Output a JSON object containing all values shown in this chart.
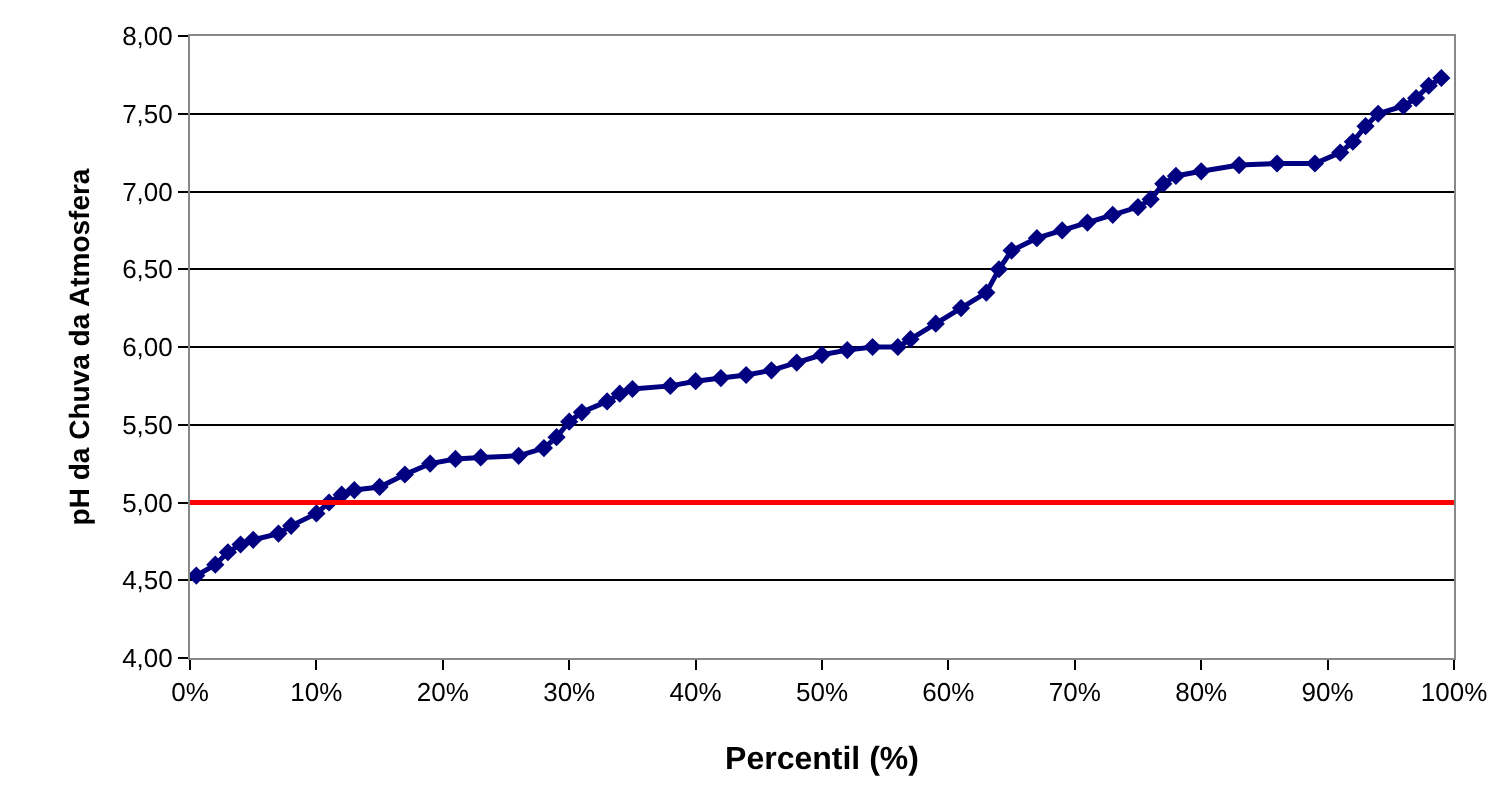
{
  "chart_data": {
    "type": "line",
    "xlabel": "Percentil (%)",
    "ylabel": "pH da Chuva da Atmosfera",
    "x": [
      0.5,
      2,
      3,
      4,
      5,
      7,
      8,
      10,
      11,
      12,
      13,
      15,
      17,
      19,
      21,
      23,
      26,
      28,
      29,
      30,
      31,
      33,
      34,
      35,
      38,
      40,
      42,
      44,
      46,
      48,
      50,
      52,
      54,
      56,
      57,
      59,
      61,
      63,
      64,
      65,
      67,
      69,
      71,
      73,
      75,
      76,
      77,
      78,
      80,
      83,
      86,
      89,
      91,
      92,
      93,
      94,
      96,
      97,
      98,
      99
    ],
    "series": [
      {
        "color": "#000080",
        "values": [
          4.53,
          4.6,
          4.68,
          4.73,
          4.76,
          4.8,
          4.85,
          4.93,
          5.0,
          5.05,
          5.08,
          5.1,
          5.18,
          5.25,
          5.28,
          5.29,
          5.3,
          5.35,
          5.42,
          5.52,
          5.58,
          5.65,
          5.7,
          5.73,
          5.75,
          5.78,
          5.8,
          5.82,
          5.85,
          5.9,
          5.95,
          5.98,
          6.0,
          6.0,
          6.05,
          6.15,
          6.25,
          6.35,
          6.5,
          6.62,
          6.7,
          6.75,
          6.8,
          6.85,
          6.9,
          6.95,
          7.05,
          7.1,
          7.13,
          7.17,
          7.18,
          7.18,
          7.25,
          7.32,
          7.42,
          7.5,
          7.55,
          7.6,
          7.68,
          7.73
        ]
      }
    ],
    "xlim": [
      0,
      100
    ],
    "xticks": [
      {
        "value": 0,
        "label": "0%"
      },
      {
        "value": 10,
        "label": "10%"
      },
      {
        "value": 20,
        "label": "20%"
      },
      {
        "value": 30,
        "label": "30%"
      },
      {
        "value": 40,
        "label": "40%"
      },
      {
        "value": 50,
        "label": "50%"
      },
      {
        "value": 60,
        "label": "60%"
      },
      {
        "value": 70,
        "label": "70%"
      },
      {
        "value": 80,
        "label": "80%"
      },
      {
        "value": 90,
        "label": "90%"
      },
      {
        "value": 100,
        "label": "100%"
      }
    ],
    "ylim": [
      4,
      8
    ],
    "yticks": [
      {
        "value": 4,
        "label": "4,00"
      },
      {
        "value": 4.5,
        "label": "4,50"
      },
      {
        "value": 5,
        "label": "5,00"
      },
      {
        "value": 5.5,
        "label": "5,50"
      },
      {
        "value": 6,
        "label": "6,00"
      },
      {
        "value": 6.5,
        "label": "6,50"
      },
      {
        "value": 7,
        "label": "7,00"
      },
      {
        "value": 7.5,
        "label": "7,50"
      },
      {
        "value": 8,
        "label": "8,00"
      }
    ],
    "ref_lines": [
      {
        "axis": "y",
        "value": 5,
        "color": "#ff0000"
      }
    ],
    "grid": "y",
    "marker": "diamond",
    "line_style": "solid"
  }
}
